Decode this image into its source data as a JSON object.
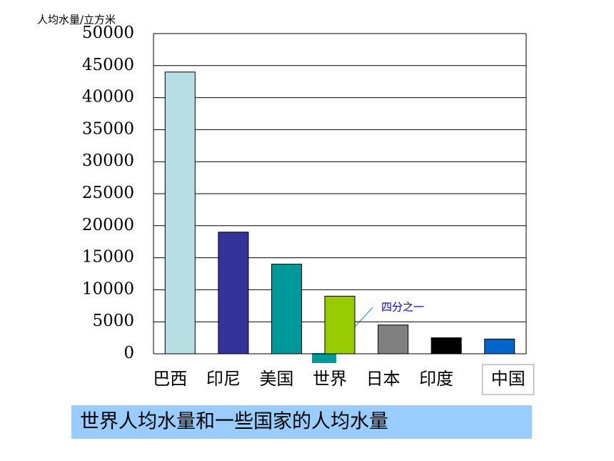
{
  "chart_data": {
    "type": "bar",
    "y_axis_label": "人均水量/立方米",
    "categories": [
      "巴西",
      "印尼",
      "美国",
      "世界",
      "日本",
      "印度",
      "中国"
    ],
    "values": [
      44000,
      19000,
      14000,
      9000,
      4500,
      2500,
      2300
    ],
    "colors": [
      "#b7dfe3",
      "#333399",
      "#009999",
      "#99cc00",
      "#808080",
      "#000000",
      "#0066cc"
    ],
    "ylim": [
      0,
      50000
    ],
    "yticks": [
      0,
      5000,
      10000,
      15000,
      20000,
      25000,
      30000,
      35000,
      40000,
      45000,
      50000
    ],
    "grid": true,
    "annotation": "四分之一",
    "caption": "世界人均水量和一些国家的人均水量"
  }
}
